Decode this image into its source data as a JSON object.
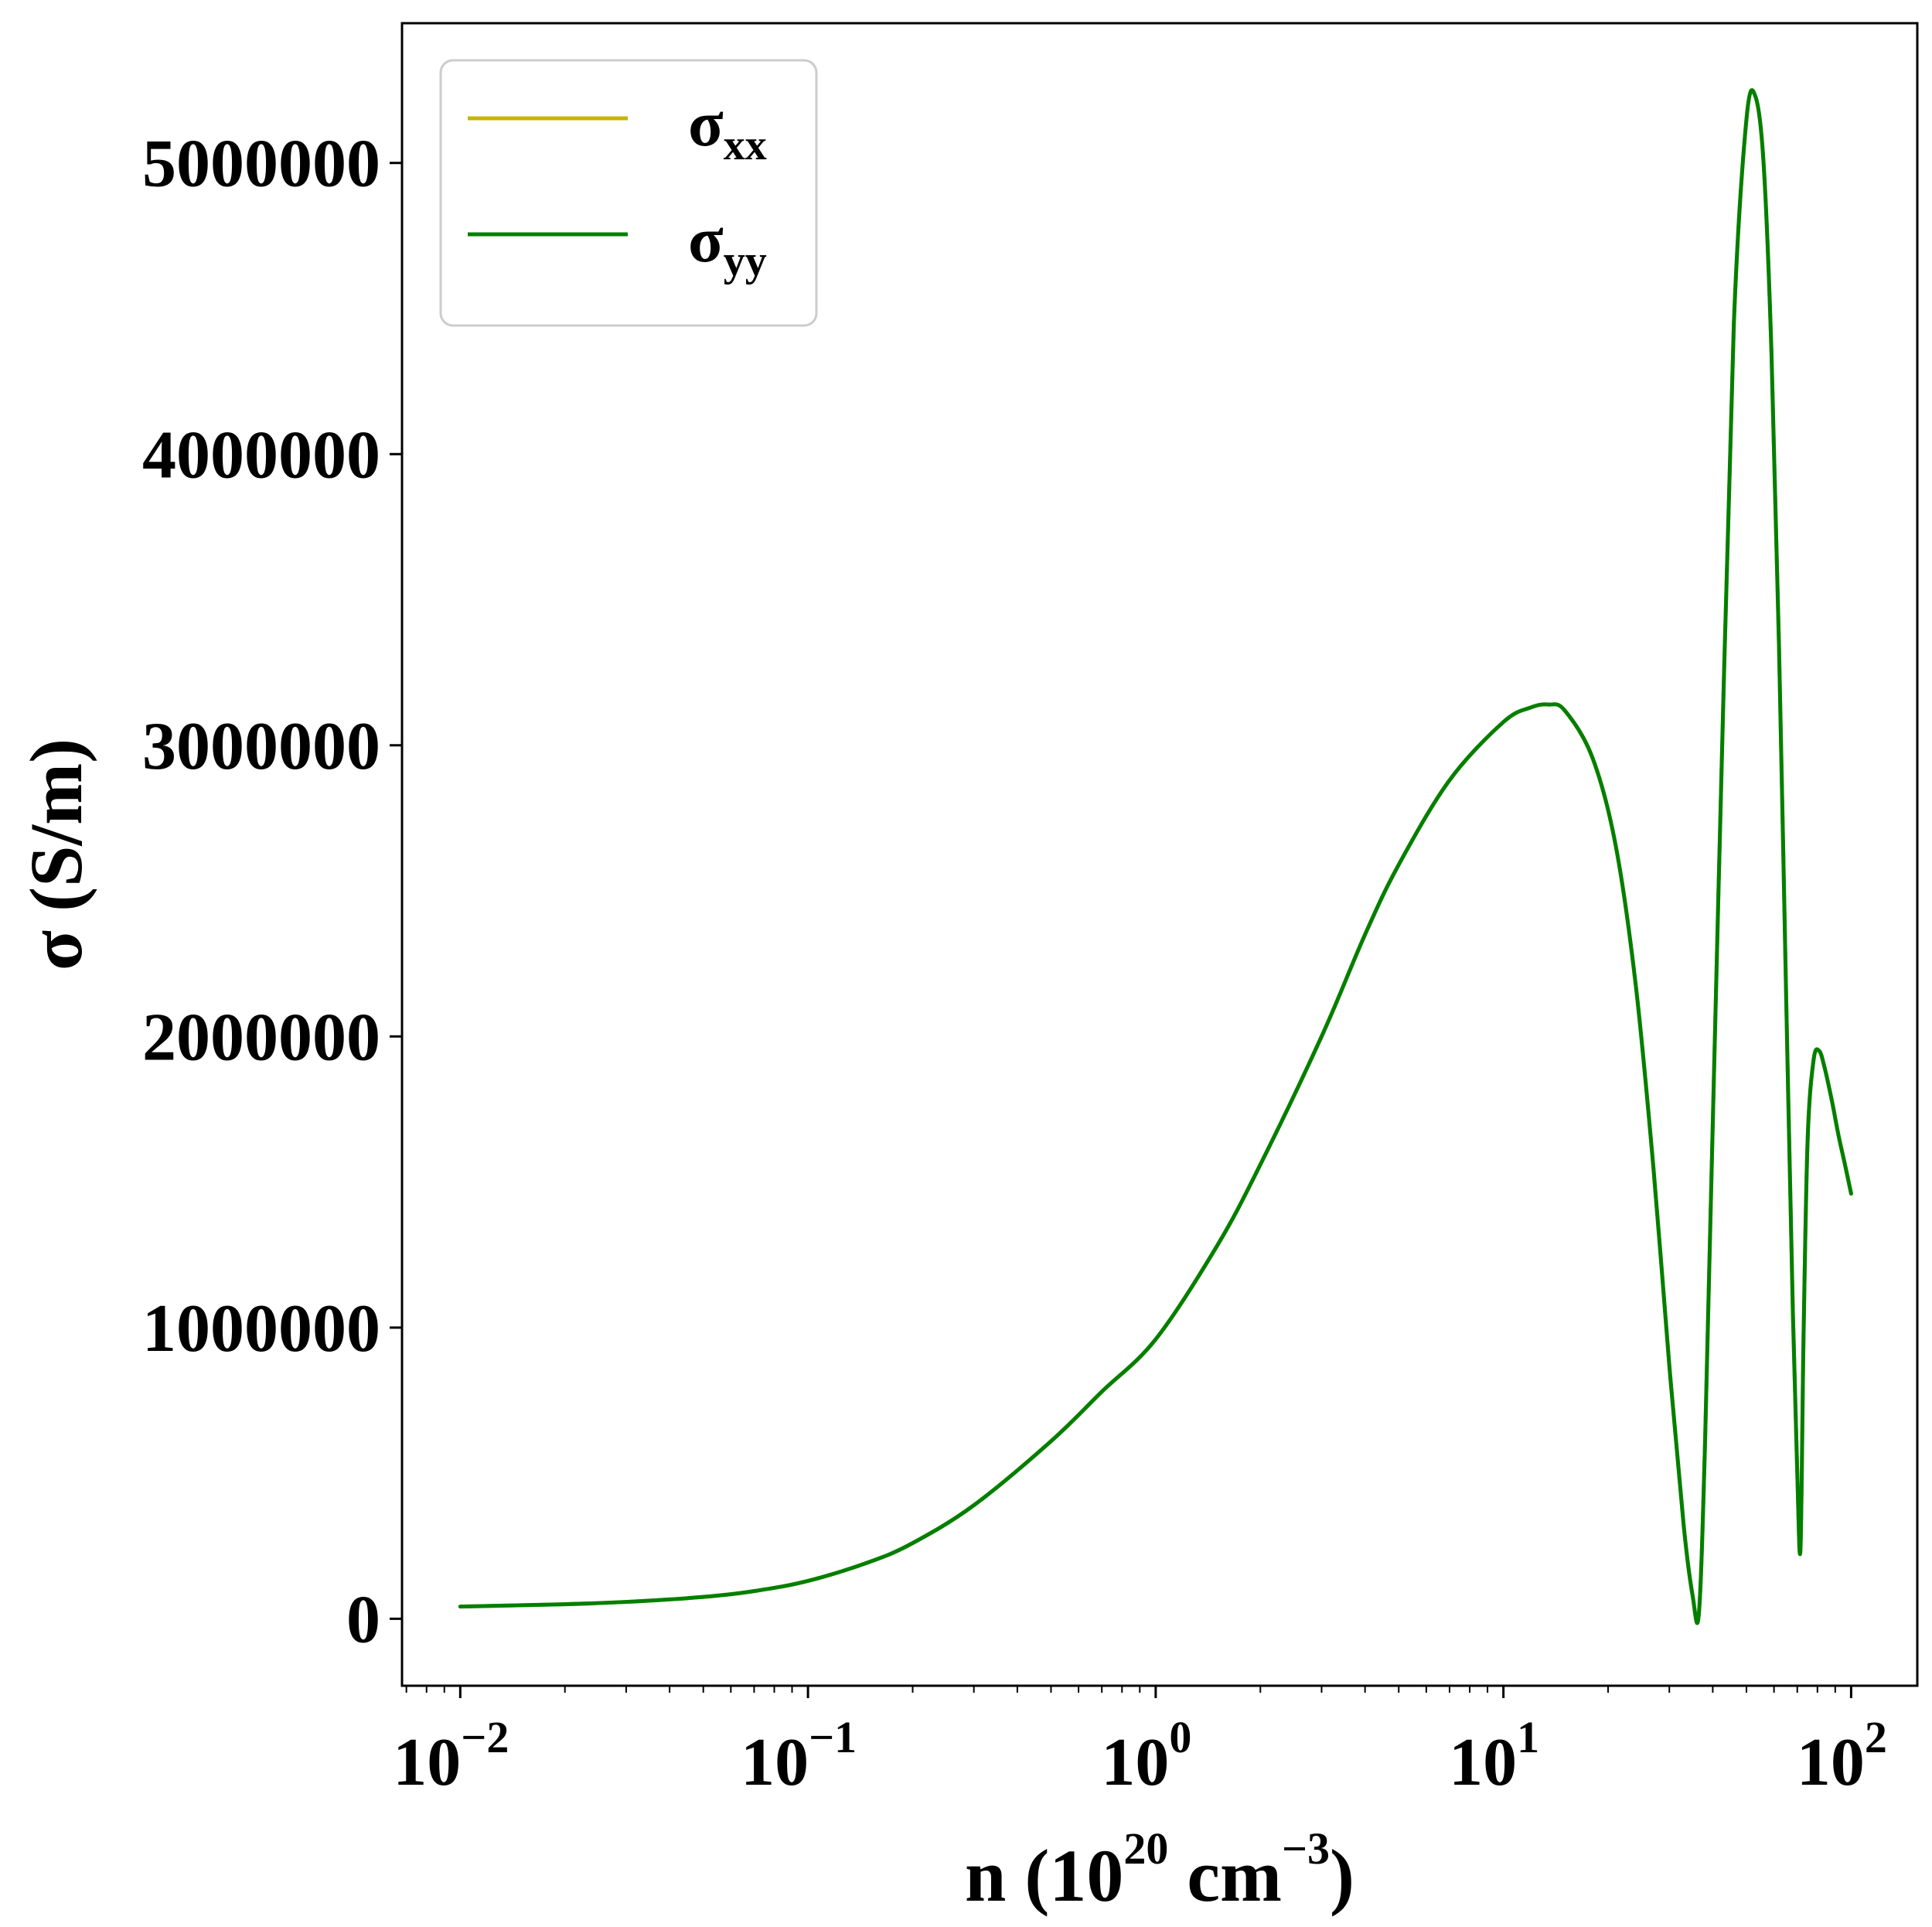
{
  "chart_data": {
    "type": "line",
    "xlabel": {
      "prefix": "n (10",
      "sup1": "20",
      "mid": " cm",
      "sup2": "−3",
      "suffix": ")"
    },
    "ylabel": "σ (S/m)",
    "xscale": "log",
    "xlim": [
      0.0068,
      155
    ],
    "ylim": [
      -230000,
      5480000
    ],
    "x_ticks": [
      {
        "value": 0.01,
        "base": "10",
        "exp": "−2"
      },
      {
        "value": 0.1,
        "base": "10",
        "exp": "−1"
      },
      {
        "value": 1,
        "base": "10",
        "exp": "0"
      },
      {
        "value": 10,
        "base": "10",
        "exp": "1"
      },
      {
        "value": 100,
        "base": "10",
        "exp": "2"
      }
    ],
    "y_ticks": [
      {
        "value": 0,
        "label": "0"
      },
      {
        "value": 1000000,
        "label": "1000000"
      },
      {
        "value": 2000000,
        "label": "2000000"
      },
      {
        "value": 3000000,
        "label": "3000000"
      },
      {
        "value": 4000000,
        "label": "4000000"
      },
      {
        "value": 5000000,
        "label": "5000000"
      }
    ],
    "grid": false,
    "legend": {
      "placement": "top-left",
      "entries": [
        {
          "symbol": "σ",
          "sub": "xx",
          "color": "#c8b400"
        },
        {
          "symbol": "σ",
          "sub": "yy",
          "color": "#007f00"
        }
      ]
    },
    "series": [
      {
        "color": "#c8b400",
        "x": [
          0.01,
          0.02,
          0.03,
          0.05,
          0.07,
          0.1,
          0.15,
          0.2,
          0.3,
          0.5,
          0.7,
          1.0,
          1.5,
          2.0,
          3.0,
          4.0,
          5.0,
          7.0,
          10.0,
          12.0,
          13.5,
          15.0,
          18.0,
          21.0,
          24.0,
          27.0,
          30.0,
          33.0,
          35.0,
          36.5,
          38.0,
          40.0,
          43.0,
          46.0,
          50.0,
          53.0,
          56.0,
          59.0,
          62.0,
          65.0,
          68.0,
          70.0,
          71.5,
          73.0,
          75.0,
          78.0,
          81.0,
          84.0,
          88.0,
          92.0,
          96.0,
          100.0
        ],
        "y": [
          42000,
          50000,
          58000,
          75000,
          95000,
          130000,
          195000,
          260000,
          390000,
          610000,
          780000,
          960000,
          1280000,
          1560000,
          2000000,
          2350000,
          2590000,
          2880000,
          3080000,
          3130000,
          3140000,
          3120000,
          2960000,
          2660000,
          2180000,
          1550000,
          870000,
          320000,
          80000,
          20000,
          600000,
          1700000,
          3200000,
          4450000,
          5150000,
          5230000,
          5000000,
          4350000,
          3350000,
          2150000,
          1050000,
          500000,
          240000,
          980000,
          1650000,
          1920000,
          1950000,
          1890000,
          1780000,
          1660000,
          1560000,
          1460000
        ]
      },
      {
        "color": "#007f00",
        "x": [
          0.01,
          0.02,
          0.03,
          0.05,
          0.07,
          0.1,
          0.15,
          0.2,
          0.3,
          0.5,
          0.7,
          1.0,
          1.5,
          2.0,
          3.0,
          4.0,
          5.0,
          7.0,
          10.0,
          12.0,
          13.5,
          15.0,
          18.0,
          21.0,
          24.0,
          27.0,
          30.0,
          33.0,
          35.0,
          36.5,
          38.0,
          40.0,
          43.0,
          46.0,
          50.0,
          53.0,
          56.0,
          59.0,
          62.0,
          65.0,
          68.0,
          70.0,
          71.5,
          73.0,
          75.0,
          78.0,
          81.0,
          84.0,
          88.0,
          92.0,
          96.0,
          100.0
        ],
        "y": [
          42000,
          50000,
          58000,
          75000,
          95000,
          130000,
          195000,
          260000,
          390000,
          610000,
          780000,
          960000,
          1280000,
          1560000,
          2000000,
          2350000,
          2590000,
          2880000,
          3080000,
          3130000,
          3140000,
          3120000,
          2960000,
          2660000,
          2180000,
          1550000,
          870000,
          320000,
          80000,
          20000,
          600000,
          1700000,
          3200000,
          4450000,
          5150000,
          5230000,
          5000000,
          4350000,
          3350000,
          2150000,
          1050000,
          500000,
          240000,
          980000,
          1650000,
          1920000,
          1950000,
          1890000,
          1780000,
          1660000,
          1560000,
          1460000
        ]
      }
    ]
  }
}
